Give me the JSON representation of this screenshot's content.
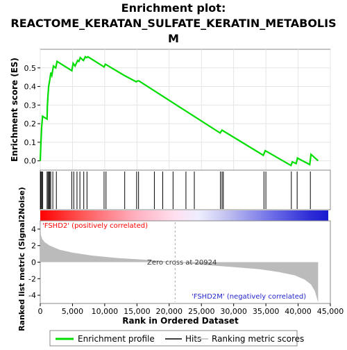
{
  "chart_data": {
    "type": "line",
    "title_line1": "Enrichment plot:",
    "title_line2": "REACTOME_KERATAN_SULFATE_KERATIN_METABOLIS",
    "title_line3": "M",
    "es_panel": {
      "ylabel": "Enrichment score (ES)",
      "ylim": [
        -0.05,
        0.6
      ],
      "yticks": [
        "0.0",
        "0.1",
        "0.2",
        "0.3",
        "0.4",
        "0.5"
      ],
      "ytick_values": [
        0.0,
        0.1,
        0.2,
        0.3,
        0.4,
        0.5
      ],
      "color": "#00dd00",
      "curve": [
        [
          0,
          0
        ],
        [
          100,
          0.09
        ],
        [
          200,
          0.175
        ],
        [
          350,
          0.24
        ],
        [
          1050,
          0.225
        ],
        [
          1100,
          0.29
        ],
        [
          1200,
          0.35
        ],
        [
          1300,
          0.4
        ],
        [
          1450,
          0.43
        ],
        [
          1650,
          0.475
        ],
        [
          1800,
          0.46
        ],
        [
          2050,
          0.51
        ],
        [
          2400,
          0.5
        ],
        [
          2600,
          0.535
        ],
        [
          4900,
          0.485
        ],
        [
          5100,
          0.525
        ],
        [
          5400,
          0.51
        ],
        [
          5800,
          0.54
        ],
        [
          6000,
          0.535
        ],
        [
          6200,
          0.555
        ],
        [
          6700,
          0.54
        ],
        [
          7000,
          0.56
        ],
        [
          7200,
          0.555
        ],
        [
          7400,
          0.56
        ],
        [
          9900,
          0.505
        ],
        [
          10100,
          0.52
        ],
        [
          13000,
          0.46
        ],
        [
          14900,
          0.425
        ],
        [
          15100,
          0.43
        ],
        [
          15300,
          0.43
        ],
        [
          27900,
          0.15
        ],
        [
          28200,
          0.165
        ],
        [
          34600,
          0.03
        ],
        [
          34900,
          0.055
        ],
        [
          38900,
          -0.025
        ],
        [
          39100,
          -0.005
        ],
        [
          39700,
          -0.015
        ],
        [
          39900,
          0.015
        ],
        [
          41800,
          -0.02
        ],
        [
          42000,
          0.035
        ],
        [
          43100,
          0
        ]
      ]
    },
    "hits": [
      30,
      120,
      230,
      380,
      1060,
      1200,
      1350,
      1480,
      1620,
      1950,
      2500,
      4900,
      5200,
      5700,
      6150,
      6750,
      7250,
      9900,
      10200,
      13100,
      14950,
      15250,
      17700,
      19000,
      20600,
      22600,
      23900,
      27950,
      28200,
      28400,
      34700,
      35000,
      38950,
      39850,
      41900
    ],
    "ranked_panel": {
      "ylabel": "Ranked list metric (Signal2Noise)",
      "ylim": [
        -5,
        5
      ],
      "yticks": [
        "4",
        "2",
        "0",
        "-2",
        "-4"
      ],
      "ytick_values": [
        4,
        2,
        0,
        -2,
        -4
      ],
      "fill_color": "#bbbbbb",
      "metric": [
        [
          0,
          4.8
        ],
        [
          100,
          3.3
        ],
        [
          300,
          2.8
        ],
        [
          700,
          2.4
        ],
        [
          1500,
          2.0
        ],
        [
          3000,
          1.5
        ],
        [
          5000,
          1.15
        ],
        [
          8000,
          0.8
        ],
        [
          12000,
          0.5
        ],
        [
          16000,
          0.3
        ],
        [
          20924,
          0
        ],
        [
          25000,
          -0.3
        ],
        [
          30000,
          -0.6
        ],
        [
          34000,
          -0.85
        ],
        [
          37000,
          -1.2
        ],
        [
          39500,
          -1.6
        ],
        [
          41000,
          -2.1
        ],
        [
          42000,
          -2.7
        ],
        [
          42600,
          -3.5
        ],
        [
          42900,
          -4.3
        ],
        [
          43100,
          -4.9
        ]
      ],
      "pos_label": "'FSHD2' (positively correlated)",
      "neg_label": "'FSHD2M' (negatively correlated)",
      "zero_cross_label": "Zero cross at 20924",
      "zero_cross": 20924
    },
    "xlabel": "Rank in Ordered Dataset",
    "xlim": [
      0,
      45000
    ],
    "xticks": [
      "0",
      "5,000",
      "10,000",
      "15,000",
      "20,000",
      "25,000",
      "30,000",
      "35,000",
      "40,000",
      "45,000"
    ],
    "xtick_values": [
      0,
      5000,
      10000,
      15000,
      20000,
      25000,
      30000,
      35000,
      40000,
      45000
    ],
    "legend": {
      "placement": "bottom",
      "entries": [
        {
          "name": "Enrichment profile",
          "color": "#00dd00"
        },
        {
          "name": "Hits",
          "color": "#000000"
        },
        {
          "name": "Ranking metric scores",
          "color": "#bbbbbb"
        }
      ]
    }
  }
}
